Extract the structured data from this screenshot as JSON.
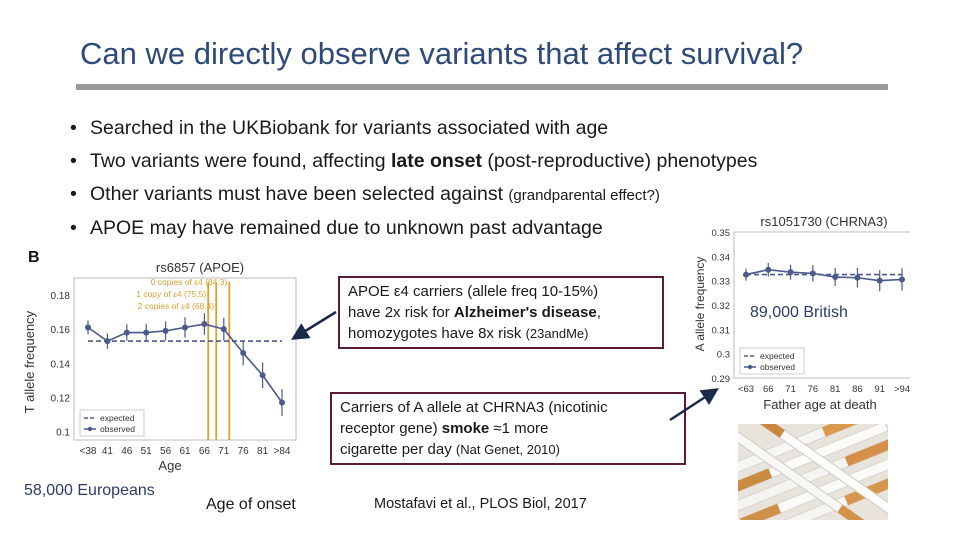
{
  "slide": {
    "title": "Can we directly observe variants that affect survival?",
    "bullets": [
      {
        "text": "Searched in the UKBiobank for variants associated with age",
        "bold": "",
        "after": "",
        "small": ""
      },
      {
        "text": "Two variants were found, affecting ",
        "bold": "late onset",
        "after": " (post-reproductive) phenotypes",
        "small": ""
      },
      {
        "text": "Other variants must have been selected against ",
        "bold": "",
        "after": "",
        "small": "(grandparental effect?)"
      },
      {
        "text": "APOE may have remained due to unknown past advantage",
        "bold": "",
        "after": "",
        "small": ""
      }
    ],
    "panel_label": "B",
    "box1": {
      "line1": "APOE ε4 carriers (allele freq 10-15%)",
      "line2_pre": "have 2x risk for ",
      "line2_bold": "Alzheimer's disease",
      "line2_post": ",",
      "line3_pre": "homozygotes have 8x risk ",
      "line3_small": "(23andMe)"
    },
    "box2": {
      "line1": "Carriers of A allele at CHRNA3 (nicotinic",
      "line2_pre": "receptor gene) ",
      "line2_bold": "smoke",
      "line2_post": " ≈1 more",
      "line3_pre": "cigarette per day ",
      "line3_small": "(Nat Genet, 2010)"
    },
    "label_europeans": "58,000 Europeans",
    "label_onset": "Age of onset",
    "label_british": "89,000 British",
    "citation": "Mostafavi et al., PLOS Biol, 2017",
    "image_icon": "cigarettes-photo"
  },
  "chart_data": [
    {
      "type": "line",
      "title": "rs6857 (APOE)",
      "xlabel": "Age",
      "ylabel": "T allele frequency",
      "categories": [
        "<38",
        "41",
        "46",
        "51",
        "56",
        "61",
        "66",
        "71",
        "76",
        "81",
        ">84"
      ],
      "yticks": [
        "0.1",
        "0.12",
        "0.14",
        "0.16",
        "0.18"
      ],
      "ylim": [
        0.095,
        0.19
      ],
      "series": [
        {
          "name": "observed",
          "values": [
            0.161,
            0.153,
            0.158,
            0.158,
            0.159,
            0.161,
            0.163,
            0.16,
            0.146,
            0.133,
            0.117
          ]
        },
        {
          "name": "expected",
          "values": [
            0.153,
            0.153,
            0.153,
            0.153,
            0.153,
            0.153,
            0.153,
            0.153,
            0.153,
            0.153,
            0.153
          ]
        }
      ],
      "annotations": [
        "0 copies of ε4 (84.3)",
        "1 copy of ε4 (75.5)",
        "2 copies of ε4 (68.4)"
      ],
      "annotation_x": [
        71.5,
        66.5,
        68.4
      ],
      "legend": "bottom-left",
      "colors": {
        "observed": "#4a5a8a",
        "expected": "#4a5a8a",
        "annotation": "#e0a030"
      }
    },
    {
      "type": "line",
      "title": "rs1051730 (CHRNA3)",
      "xlabel": "Father age at death",
      "ylabel": "A allele frequency",
      "categories": [
        "<63",
        "66",
        "71",
        "76",
        "81",
        "86",
        "91",
        ">94"
      ],
      "yticks": [
        "0.29",
        "0.3",
        "0.31",
        "0.32",
        "0.33",
        "0.34",
        "0.35"
      ],
      "ylim": [
        0.29,
        0.35
      ],
      "series": [
        {
          "name": "observed",
          "values": [
            0.3325,
            0.3345,
            0.3335,
            0.333,
            0.3315,
            0.3312,
            0.33,
            0.3305
          ]
        },
        {
          "name": "expected",
          "values": [
            0.3325,
            0.3325,
            0.3325,
            0.3325,
            0.3325,
            0.3325,
            0.3325,
            0.3325
          ]
        }
      ],
      "legend": "bottom-left",
      "colors": {
        "observed": "#4a5a8a",
        "expected": "#4a5a8a"
      }
    }
  ]
}
